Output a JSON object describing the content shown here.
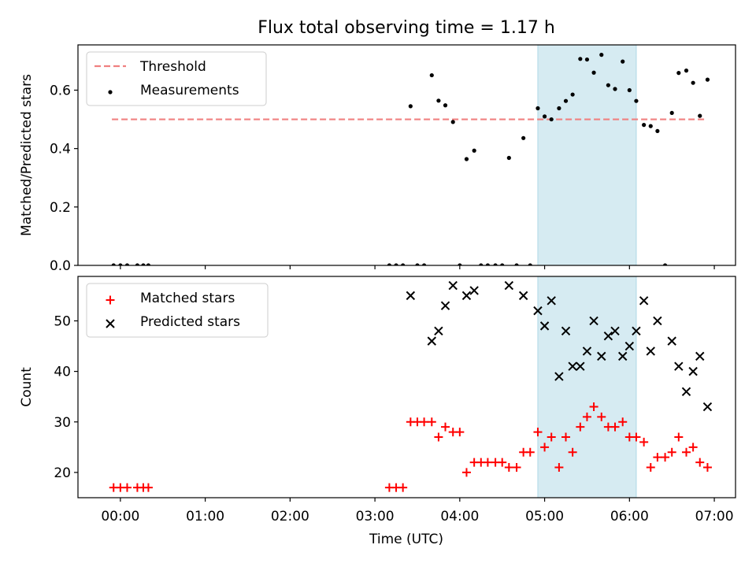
{
  "chart_data": {
    "title": "Flux total observing time = 1.17 h",
    "xlabel": "Time (UTC)",
    "x_unit": "hours UTC",
    "xlim": [
      -0.5,
      7.25
    ],
    "xticks": [
      {
        "v": 0,
        "label": "00:00"
      },
      {
        "v": 1,
        "label": "01:00"
      },
      {
        "v": 2,
        "label": "02:00"
      },
      {
        "v": 3,
        "label": "03:00"
      },
      {
        "v": 4,
        "label": "04:00"
      },
      {
        "v": 5,
        "label": "05:00"
      },
      {
        "v": 6,
        "label": "06:00"
      },
      {
        "v": 7,
        "label": "07:00"
      }
    ],
    "highlight_span": [
      4.92,
      6.08
    ],
    "highlight_color": "#add8e6",
    "panels": [
      {
        "type": "scatter",
        "ylabel": "Matched/Predicted stars",
        "ylim": [
          0,
          0.755
        ],
        "yticks": [
          {
            "v": 0,
            "label": "0.0"
          },
          {
            "v": 0.2,
            "label": "0.2"
          },
          {
            "v": 0.4,
            "label": "0.4"
          },
          {
            "v": 0.6,
            "label": "0.6"
          }
        ],
        "legend_position": "top-left",
        "threshold": {
          "name": "Threshold",
          "value": 0.5,
          "x": [
            -0.1,
            6.9
          ],
          "color": "#f08080"
        },
        "series": [
          {
            "name": "Measurements",
            "marker": "dot",
            "color": "#000000",
            "points": [
              [
                -0.08,
                0
              ],
              [
                0,
                0
              ],
              [
                0.08,
                0
              ],
              [
                0.2,
                0
              ],
              [
                0.27,
                0
              ],
              [
                0.33,
                0
              ],
              [
                3.17,
                0
              ],
              [
                3.25,
                0
              ],
              [
                3.33,
                0
              ],
              [
                3.42,
                0.545
              ],
              [
                3.5,
                0
              ],
              [
                3.58,
                0
              ],
              [
                3.67,
                0.651
              ],
              [
                3.75,
                0.564
              ],
              [
                3.83,
                0.548
              ],
              [
                3.92,
                0.491
              ],
              [
                4.0,
                0
              ],
              [
                4.08,
                0.364
              ],
              [
                4.17,
                0.393
              ],
              [
                4.25,
                0
              ],
              [
                4.33,
                0
              ],
              [
                4.42,
                0
              ],
              [
                4.5,
                0
              ],
              [
                4.58,
                0.368
              ],
              [
                4.67,
                0
              ],
              [
                4.75,
                0.436
              ],
              [
                4.83,
                0
              ],
              [
                4.92,
                0.538
              ],
              [
                5.0,
                0.51
              ],
              [
                5.08,
                0.5
              ],
              [
                5.17,
                0.538
              ],
              [
                5.25,
                0.563
              ],
              [
                5.33,
                0.585
              ],
              [
                5.42,
                0.707
              ],
              [
                5.5,
                0.705
              ],
              [
                5.58,
                0.66
              ],
              [
                5.67,
                0.721
              ],
              [
                5.75,
                0.617
              ],
              [
                5.83,
                0.604
              ],
              [
                5.92,
                0.698
              ],
              [
                6.0,
                0.6
              ],
              [
                6.08,
                0.563
              ],
              [
                6.17,
                0.481
              ],
              [
                6.25,
                0.477
              ],
              [
                6.33,
                0.46
              ],
              [
                6.42,
                0
              ],
              [
                6.5,
                0.522
              ],
              [
                6.58,
                0.659
              ],
              [
                6.67,
                0.667
              ],
              [
                6.75,
                0.625
              ],
              [
                6.83,
                0.512
              ],
              [
                6.92,
                0.636
              ]
            ]
          }
        ]
      },
      {
        "type": "scatter",
        "ylabel": "Count",
        "ylim": [
          15,
          58.8
        ],
        "yticks": [
          {
            "v": 20,
            "label": "20"
          },
          {
            "v": 30,
            "label": "30"
          },
          {
            "v": 40,
            "label": "40"
          },
          {
            "v": 50,
            "label": "50"
          }
        ],
        "legend_position": "top-left",
        "series": [
          {
            "name": "Matched stars",
            "marker": "plus",
            "color": "#ff0000",
            "points": [
              [
                -0.08,
                17
              ],
              [
                0,
                17
              ],
              [
                0.08,
                17
              ],
              [
                0.2,
                17
              ],
              [
                0.27,
                17
              ],
              [
                0.33,
                17
              ],
              [
                3.17,
                17
              ],
              [
                3.25,
                17
              ],
              [
                3.33,
                17
              ],
              [
                3.42,
                30
              ],
              [
                3.5,
                30
              ],
              [
                3.58,
                30
              ],
              [
                3.67,
                30
              ],
              [
                3.75,
                27
              ],
              [
                3.83,
                29
              ],
              [
                3.92,
                28
              ],
              [
                4.0,
                28
              ],
              [
                4.08,
                20
              ],
              [
                4.17,
                22
              ],
              [
                4.25,
                22
              ],
              [
                4.33,
                22
              ],
              [
                4.42,
                22
              ],
              [
                4.5,
                22
              ],
              [
                4.58,
                21
              ],
              [
                4.67,
                21
              ],
              [
                4.75,
                24
              ],
              [
                4.83,
                24
              ],
              [
                4.92,
                28
              ],
              [
                5.0,
                25
              ],
              [
                5.08,
                27
              ],
              [
                5.17,
                21
              ],
              [
                5.25,
                27
              ],
              [
                5.33,
                24
              ],
              [
                5.42,
                29
              ],
              [
                5.5,
                31
              ],
              [
                5.58,
                33
              ],
              [
                5.67,
                31
              ],
              [
                5.75,
                29
              ],
              [
                5.83,
                29
              ],
              [
                5.92,
                30
              ],
              [
                6.0,
                27
              ],
              [
                6.08,
                27
              ],
              [
                6.17,
                26
              ],
              [
                6.25,
                21
              ],
              [
                6.33,
                23
              ],
              [
                6.42,
                23
              ],
              [
                6.5,
                24
              ],
              [
                6.58,
                27
              ],
              [
                6.67,
                24
              ],
              [
                6.75,
                25
              ],
              [
                6.83,
                22
              ],
              [
                6.92,
                21
              ]
            ]
          },
          {
            "name": "Predicted stars",
            "marker": "x",
            "color": "#000000",
            "points": [
              [
                3.42,
                55
              ],
              [
                3.67,
                46
              ],
              [
                3.75,
                48
              ],
              [
                3.83,
                53
              ],
              [
                3.92,
                57
              ],
              [
                4.08,
                55
              ],
              [
                4.17,
                56
              ],
              [
                4.58,
                57
              ],
              [
                4.75,
                55
              ],
              [
                4.92,
                52
              ],
              [
                5.0,
                49
              ],
              [
                5.08,
                54
              ],
              [
                5.17,
                39
              ],
              [
                5.25,
                48
              ],
              [
                5.33,
                41
              ],
              [
                5.42,
                41
              ],
              [
                5.5,
                44
              ],
              [
                5.58,
                50
              ],
              [
                5.67,
                43
              ],
              [
                5.75,
                47
              ],
              [
                5.83,
                48
              ],
              [
                5.92,
                43
              ],
              [
                6.0,
                45
              ],
              [
                6.08,
                48
              ],
              [
                6.17,
                54
              ],
              [
                6.25,
                44
              ],
              [
                6.33,
                50
              ],
              [
                6.5,
                46
              ],
              [
                6.58,
                41
              ],
              [
                6.67,
                36
              ],
              [
                6.75,
                40
              ],
              [
                6.83,
                43
              ],
              [
                6.92,
                33
              ]
            ]
          }
        ]
      }
    ]
  }
}
